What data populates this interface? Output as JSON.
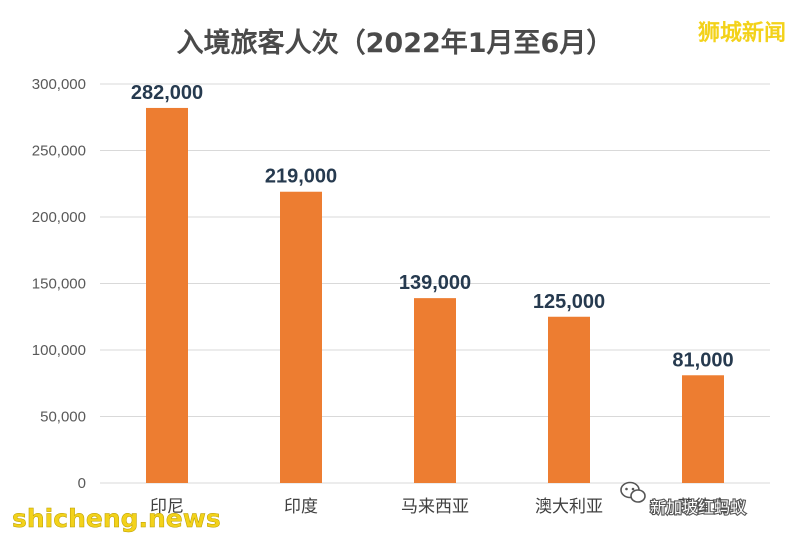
{
  "watermarks": {
    "brand": "狮城新闻",
    "site": "shicheng.news",
    "wechat": "新加坡红蚂蚁"
  },
  "colors": {
    "bar": "#ED7D31",
    "grid": "#D9D9D9",
    "label": "#263A4F",
    "brand_yellow": "#F3D21A"
  },
  "icons": {
    "wechat": "wechat-logo-icon"
  },
  "chart_data": {
    "type": "bar",
    "title": "入境旅客人次（2022年1月至6月）",
    "xlabel": "",
    "ylabel": "",
    "categories": [
      "印尼",
      "印度",
      "马来西亚",
      "澳大利亚",
      "菲律宾"
    ],
    "values": [
      282000,
      219000,
      139000,
      125000,
      81000
    ],
    "data_labels": [
      "282,000",
      "219,000",
      "139,000",
      "125,000",
      "81,000"
    ],
    "yticks": [
      0,
      50000,
      100000,
      150000,
      200000,
      250000,
      300000
    ],
    "ytick_labels": [
      "0",
      "50,000",
      "100,000",
      "150,000",
      "200,000",
      "250,000",
      "300,000"
    ],
    "ylim": [
      0,
      300000
    ],
    "grid": true,
    "legend": "none"
  }
}
